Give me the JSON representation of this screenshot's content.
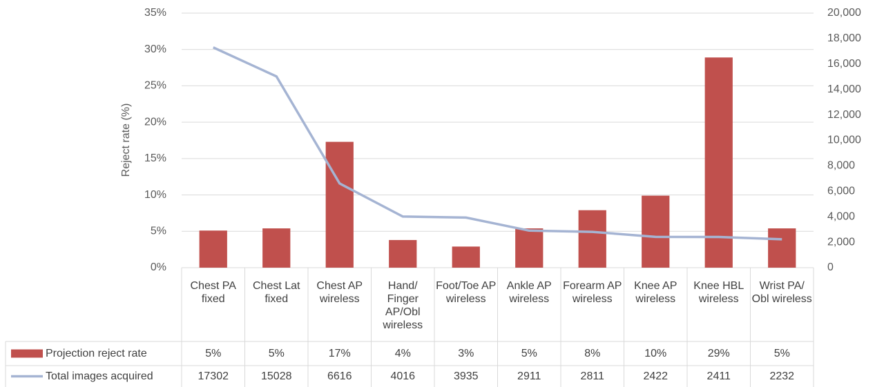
{
  "chart_data": {
    "type": "bar_line",
    "y_label": "Reject rate (%)",
    "categories": [
      "Chest PA fixed",
      "Chest Lat fixed",
      "Chest AP wireless",
      "Hand/ Finger AP/Obl wireless",
      "Foot/Toe AP wireless",
      "Ankle AP wireless",
      "Forearm AP wireless",
      "Knee AP wireless",
      "Knee HBL wireless",
      "Wrist PA/ Obl wireless"
    ],
    "series": [
      {
        "name": "Projection reject rate",
        "type": "bar",
        "color": "#c0504d",
        "values": [
          5.1,
          5.4,
          17.3,
          3.8,
          2.9,
          5.4,
          7.9,
          9.9,
          28.9,
          5.4
        ],
        "value_labels": [
          "5%",
          "5%",
          "17%",
          "4%",
          "3%",
          "5%",
          "8%",
          "10%",
          "29%",
          "5%"
        ]
      },
      {
        "name": "Total images acquired",
        "type": "line",
        "color": "#a5b4d3",
        "axis": "y2",
        "values": [
          17302,
          15028,
          6616,
          4016,
          3935,
          2911,
          2811,
          2422,
          2411,
          2232
        ]
      }
    ],
    "ylim": [
      0,
      35
    ],
    "yticks": [
      {
        "value": 0,
        "label": "0%"
      },
      {
        "value": 5,
        "label": "5%"
      },
      {
        "value": 10,
        "label": "10%"
      },
      {
        "value": 15,
        "label": "15%"
      },
      {
        "value": 20,
        "label": "20%"
      },
      {
        "value": 25,
        "label": "25%"
      },
      {
        "value": 30,
        "label": "30%"
      },
      {
        "value": 35,
        "label": "35%"
      }
    ],
    "y2lim": [
      0,
      20000
    ],
    "y2ticks": [
      0,
      {
        "value": 2000,
        "label": "2,000"
      },
      {
        "value": 4000,
        "label": "4,000"
      },
      {
        "value": 6000,
        "label": "6,000"
      },
      {
        "value": 8000,
        "label": "8,000"
      },
      {
        "value": 10000,
        "label": "10,000"
      },
      {
        "value": 12000,
        "label": "12,000"
      },
      {
        "value": 14000,
        "label": "14,000"
      },
      {
        "value": 16000,
        "label": "16,000"
      },
      {
        "value": 18000,
        "label": "18,000"
      },
      {
        "value": 20000,
        "label": "20,000"
      }
    ],
    "grid": true
  }
}
